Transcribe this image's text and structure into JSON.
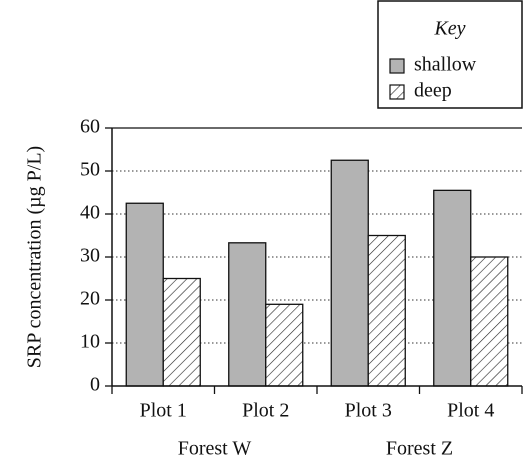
{
  "chart_data": {
    "type": "bar",
    "ylabel": "SRP concentration (µg P/L)",
    "categories": [
      "Plot 1",
      "Plot 2",
      "Plot 3",
      "Plot 4"
    ],
    "groups": [
      "Forest W",
      "Forest Z"
    ],
    "legend_title": "Key",
    "series": [
      {
        "name": "shallow",
        "color": "#b3b3b3",
        "values": [
          42.5,
          33.3,
          52.5,
          45.5
        ]
      },
      {
        "name": "deep",
        "color": "#ffffff",
        "pattern": "hatch",
        "values": [
          25,
          19,
          35,
          30
        ]
      }
    ],
    "ylim": [
      0,
      60
    ],
    "yticks": [
      0,
      10,
      20,
      30,
      40,
      50,
      60
    ],
    "grid": true,
    "legend": "top-right"
  }
}
